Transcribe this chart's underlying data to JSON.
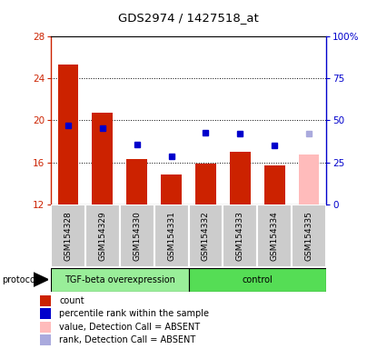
{
  "title": "GDS2974 / 1427518_at",
  "samples": [
    "GSM154328",
    "GSM154329",
    "GSM154330",
    "GSM154331",
    "GSM154332",
    "GSM154333",
    "GSM154334",
    "GSM154335"
  ],
  "bar_values": [
    25.3,
    20.7,
    16.3,
    14.8,
    15.9,
    17.0,
    15.7,
    16.7
  ],
  "bar_colors": [
    "#cc2200",
    "#cc2200",
    "#cc2200",
    "#cc2200",
    "#cc2200",
    "#cc2200",
    "#cc2200",
    "#ffbbbb"
  ],
  "dot_values": [
    19.5,
    19.3,
    17.7,
    16.6,
    18.8,
    18.7,
    17.6,
    18.7
  ],
  "dot_colors": [
    "#0000cc",
    "#0000cc",
    "#0000cc",
    "#0000cc",
    "#0000cc",
    "#0000cc",
    "#0000cc",
    "#aaaadd"
  ],
  "ylim_left": [
    12,
    28
  ],
  "ylim_right": [
    0,
    100
  ],
  "yticks_left": [
    12,
    16,
    20,
    24,
    28
  ],
  "yticks_right": [
    0,
    25,
    50,
    75,
    100
  ],
  "yticklabels_right": [
    "0",
    "25",
    "50",
    "75",
    "100%"
  ],
  "left_axis_color": "#cc2200",
  "right_axis_color": "#0000cc",
  "group1_label": "TGF-beta overexpression",
  "group2_label": "control",
  "group1_color": "#99ee99",
  "group2_color": "#55dd55",
  "protocol_label": "protocol",
  "col_bg_color": "#cccccc",
  "col_border_color": "#ffffff",
  "legend_items": [
    {
      "color": "#cc2200",
      "label": "count"
    },
    {
      "color": "#0000cc",
      "label": "percentile rank within the sample"
    },
    {
      "color": "#ffbbbb",
      "label": "value, Detection Call = ABSENT"
    },
    {
      "color": "#aaaadd",
      "label": "rank, Detection Call = ABSENT"
    }
  ]
}
